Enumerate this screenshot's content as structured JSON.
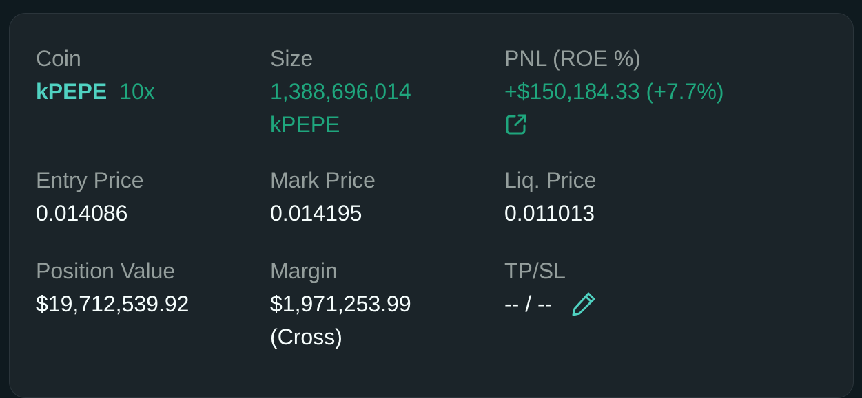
{
  "position": {
    "coin": {
      "label": "Coin",
      "name": "kPEPE",
      "leverage": "10x"
    },
    "size": {
      "label": "Size",
      "amount": "1,388,696,014",
      "unit": "kPEPE"
    },
    "pnl": {
      "label": "PNL (ROE %)",
      "value": "+$150,184.33 (+7.7%)",
      "share_icon": "external-link-icon"
    },
    "entry_price": {
      "label": "Entry Price",
      "value": "0.014086"
    },
    "mark_price": {
      "label": "Mark Price",
      "value": "0.014195"
    },
    "liq_price": {
      "label": "Liq. Price",
      "value": "0.011013"
    },
    "position_value": {
      "label": "Position Value",
      "value": "$19,712,539.92"
    },
    "margin": {
      "label": "Margin",
      "value": "$1,971,253.99",
      "mode": "(Cross)"
    },
    "tpsl": {
      "label": "TP/SL",
      "value": "-- / --",
      "edit_icon": "pencil-icon"
    }
  },
  "colors": {
    "background": "#0f1a1f",
    "card": "#1b2429",
    "label": "#949e9c",
    "value": "#f6fefd",
    "profit_green": "#1fa67d",
    "accent_teal": "#50d2c1"
  }
}
